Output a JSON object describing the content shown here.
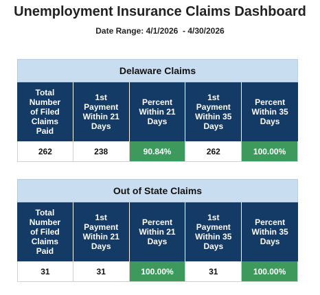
{
  "header": {
    "title": "Unemployment Insurance Claims Dashboard",
    "date_range": "Date Range: 4/1/2026  - 4/30/2026"
  },
  "tables": [
    {
      "title": "Delaware Claims",
      "headers": [
        "Total Number of Filed Claims Paid",
        "1st Payment Within 21 Days",
        "Percent Within 21 Days",
        "1st Payment Within 35 Days",
        "Percent Within 35 Days"
      ],
      "values": [
        "262",
        "238",
        "90.84%",
        "262",
        "100.00%"
      ]
    },
    {
      "title": "Out of State Claims",
      "headers": [
        "Total Number of Filed Claims Paid",
        "1st Payment Within 21 Days",
        "Percent Within 21 Days",
        "1st Payment Within 35 Days",
        "Percent Within 35 Days"
      ],
      "values": [
        "31",
        "31",
        "100.00%",
        "31",
        "100.00%"
      ]
    }
  ]
}
